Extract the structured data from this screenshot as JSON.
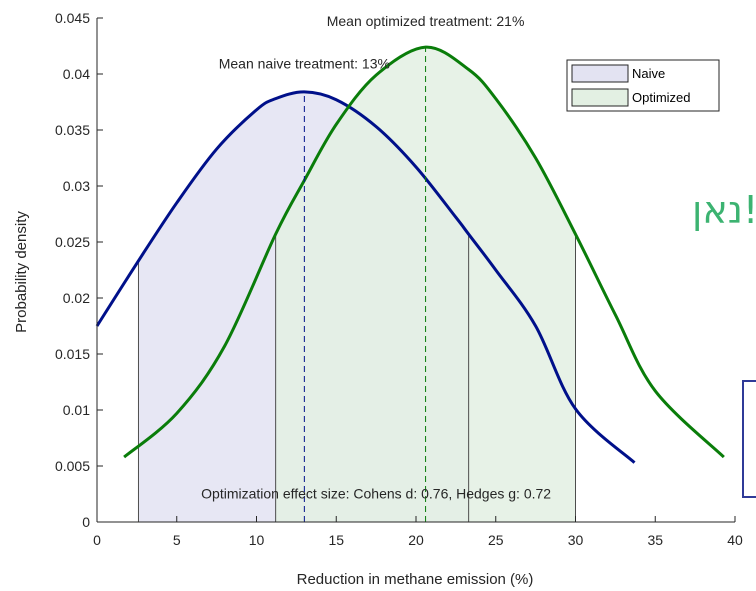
{
  "chart_data": {
    "type": "area",
    "xlabel": "Reduction in methane emission (%)",
    "ylabel": "Probability density",
    "xlim": [
      0,
      40
    ],
    "ylim": [
      0,
      0.045
    ],
    "xticks": [
      0,
      5,
      10,
      15,
      20,
      25,
      30,
      35,
      40
    ],
    "yticks": [
      0,
      0.005,
      0.01,
      0.015,
      0.02,
      0.025,
      0.03,
      0.035,
      0.04,
      0.045
    ],
    "xtick_labels": [
      "0",
      "5",
      "10",
      "15",
      "20",
      "25",
      "30",
      "35",
      "40"
    ],
    "ytick_labels": [
      "0",
      "0.005",
      "0.01",
      "0.015",
      "0.02",
      "0.025",
      "0.03",
      "0.035",
      "0.04",
      "0.045"
    ],
    "grid": false,
    "legend_position": "top-right",
    "series": [
      {
        "name": "Naive",
        "color": "#00108a",
        "fill": "#e3e3f2",
        "x": [
          0,
          2.5,
          5,
          7.5,
          10,
          11.2,
          13,
          15,
          17.5,
          20,
          22.5,
          23.3,
          25,
          27.5,
          30,
          33.7
        ],
        "y": [
          0.0175,
          0.0231,
          0.0285,
          0.0333,
          0.0368,
          0.0378,
          0.0384,
          0.0377,
          0.0353,
          0.0317,
          0.0272,
          0.0257,
          0.0225,
          0.0175,
          0.0101,
          0.0053
        ],
        "shade_range": [
          2.6,
          23.3
        ]
      },
      {
        "name": "Optimized",
        "color": "#0a7d0a",
        "fill": "#e3f0e3",
        "x": [
          1.7,
          5,
          8,
          11.2,
          13,
          15,
          17.5,
          20.6,
          23.3,
          25,
          27.5,
          30,
          32.5,
          35,
          39.3
        ],
        "y": [
          0.0058,
          0.0097,
          0.0157,
          0.0257,
          0.0305,
          0.0355,
          0.0399,
          0.0424,
          0.0404,
          0.0378,
          0.0325,
          0.0257,
          0.0185,
          0.0117,
          0.0058
        ],
        "shade_range": [
          11.2,
          30
        ]
      }
    ],
    "vlines": [
      {
        "x": 13.0,
        "color": "#00108a"
      },
      {
        "x": 20.6,
        "color": "#0a7d0a"
      }
    ],
    "boundaries": [
      2.6,
      11.2,
      23.3,
      30
    ],
    "annotations": [
      {
        "id": "opt",
        "text": "Mean optimized treatment: 21%",
        "x": 20.6,
        "y": 0.0443
      },
      {
        "id": "naive",
        "text": "Mean naive treatment: 13%",
        "x": 13.0,
        "y": 0.0405
      },
      {
        "id": "effect",
        "text": "Optimization effect size: Cohens d: 0.76, Hedges g: 0.72",
        "x": 17.5,
        "y": 0.0021
      }
    ]
  },
  "overlay": {
    "hebrew_text": "נאן!"
  }
}
